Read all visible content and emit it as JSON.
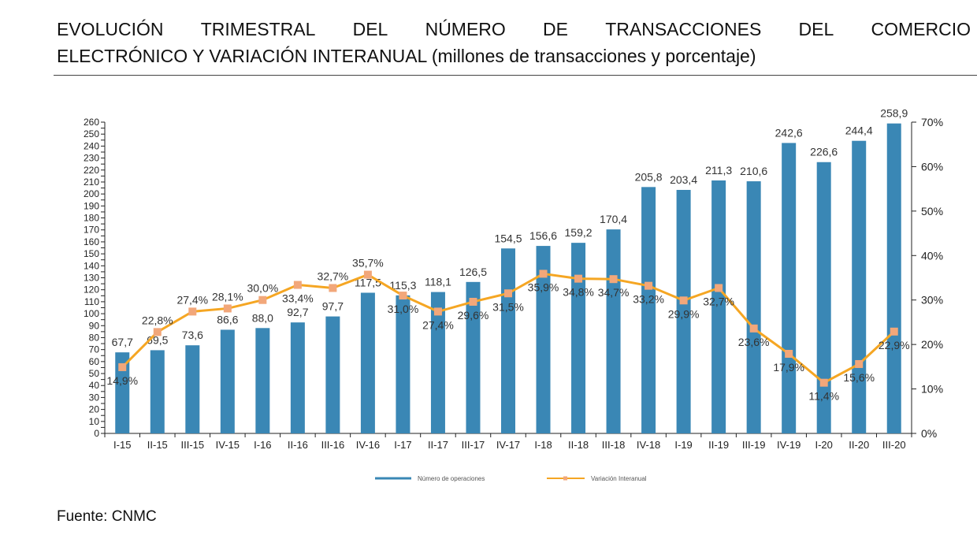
{
  "title": {
    "line1_words": [
      "EVOLUCIÓN",
      "TRIMESTRAL",
      "DEL",
      "NÚMERO",
      "DE",
      "TRANSACCIONES",
      "DEL",
      "COMERCIO"
    ],
    "line2_bold": "ELECTRÓNICO Y VARIACIÓN INTERANUAL",
    "line2_rest": " (millones de transacciones y porcentaje)"
  },
  "source": "Fuente: CNMC",
  "chart_data": {
    "type": "bar+line",
    "categories": [
      "I-15",
      "II-15",
      "III-15",
      "IV-15",
      "I-16",
      "II-16",
      "III-16",
      "IV-16",
      "I-17",
      "II-17",
      "III-17",
      "IV-17",
      "I-18",
      "II-18",
      "III-18",
      "IV-18",
      "I-19",
      "II-19",
      "III-19",
      "IV-19",
      "I-20",
      "II-20",
      "III-20"
    ],
    "series": [
      {
        "name": "Número de operaciones",
        "type": "bar",
        "axis": "left",
        "color": "#3a87b5",
        "values": [
          67.7,
          69.5,
          73.6,
          86.6,
          88.0,
          92.7,
          97.7,
          117.5,
          115.3,
          118.1,
          126.5,
          154.5,
          156.6,
          159.2,
          170.4,
          205.8,
          203.4,
          211.3,
          210.6,
          242.6,
          226.6,
          244.4,
          258.9
        ]
      },
      {
        "name": "Variación Interanual",
        "type": "line",
        "axis": "right",
        "color": "#f5a623",
        "marker_color": "#f2a77a",
        "values": [
          14.9,
          22.8,
          27.4,
          28.1,
          30.0,
          33.4,
          32.7,
          35.7,
          31.0,
          27.4,
          29.6,
          31.5,
          35.9,
          34.8,
          34.7,
          33.2,
          29.9,
          32.7,
          23.6,
          17.9,
          11.4,
          15.6,
          22.9
        ]
      }
    ],
    "y_left": {
      "range": [
        0,
        260
      ],
      "tick_step": 10,
      "minor_step": 5
    },
    "y_right": {
      "range": [
        0,
        70
      ],
      "tick_step": 10,
      "unit": "%"
    },
    "legend": "bottom",
    "grid": false
  }
}
